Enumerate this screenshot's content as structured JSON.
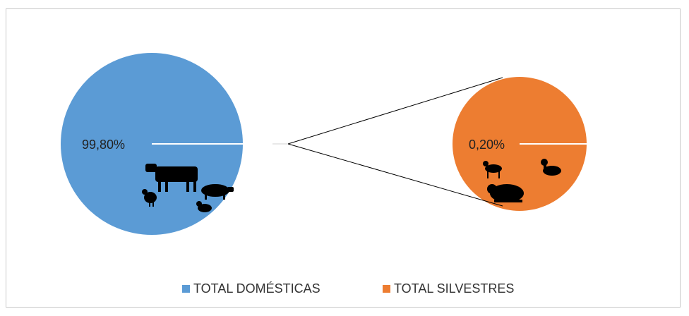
{
  "chart_data": {
    "type": "pie",
    "subtype": "pie-of-pie",
    "categories": [
      "TOTAL DOMÉSTICAS",
      "TOTAL SILVESTRES"
    ],
    "values": [
      99.8,
      0.2
    ],
    "labels": [
      "99,80%",
      "0,20%"
    ],
    "colors": [
      "#5B9BD5",
      "#ED7D31"
    ],
    "legend": {
      "position": "bottom",
      "entries": [
        "TOTAL DOMÉSTICAS",
        "TOTAL SILVESTRES"
      ]
    },
    "icons": {
      "domesticas": [
        "cow-icon",
        "pig-icon",
        "chicken-icon",
        "duck-icon"
      ],
      "silvestres": [
        "deer-icon",
        "duck-icon",
        "rat-icon"
      ]
    }
  }
}
